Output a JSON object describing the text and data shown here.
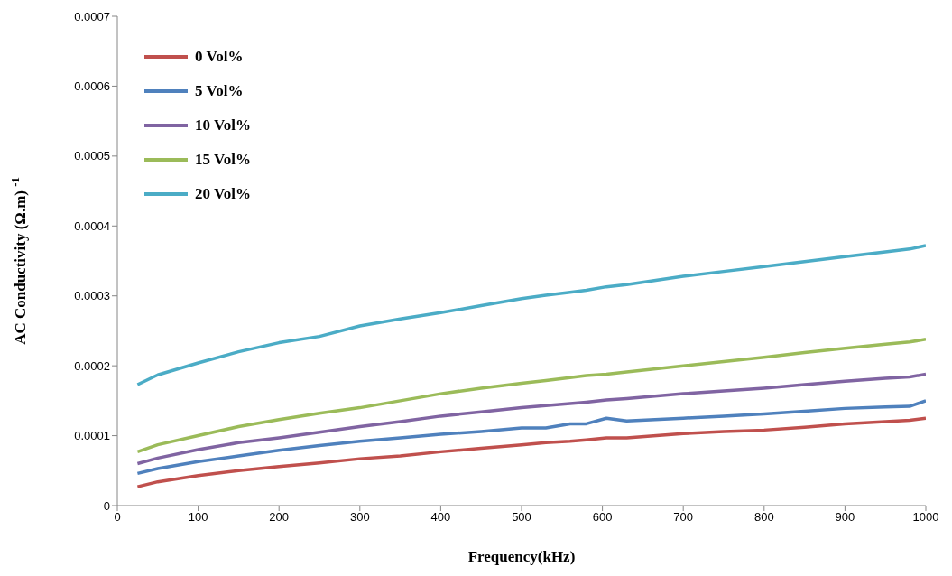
{
  "chart_data": {
    "type": "line",
    "xlabel": "Frequency(kHz)",
    "ylabel": "AC Conductivity (Ω.m) $^{-1}$",
    "x": [
      25,
      50,
      100,
      150,
      200,
      250,
      300,
      350,
      400,
      450,
      500,
      530,
      560,
      580,
      605,
      630,
      700,
      750,
      800,
      850,
      900,
      950,
      980,
      1000
    ],
    "series": [
      {
        "name": "0 Vol%",
        "color": "#c0504d",
        "values": [
          2.7e-05,
          3.4e-05,
          4.3e-05,
          5e-05,
          5.6e-05,
          6.1e-05,
          6.7e-05,
          7.1e-05,
          7.7e-05,
          8.2e-05,
          8.7e-05,
          9e-05,
          9.2e-05,
          9.4e-05,
          9.7e-05,
          9.7e-05,
          0.000103,
          0.000106,
          0.000108,
          0.000112,
          0.000117,
          0.00012,
          0.000122,
          0.000125
        ]
      },
      {
        "name": "5 Vol%",
        "color": "#4f81bd",
        "values": [
          4.6e-05,
          5.3e-05,
          6.3e-05,
          7.1e-05,
          7.9e-05,
          8.6e-05,
          9.2e-05,
          9.7e-05,
          0.000102,
          0.000106,
          0.000111,
          0.000111,
          0.000117,
          0.000117,
          0.000125,
          0.000121,
          0.000125,
          0.000128,
          0.000131,
          0.000135,
          0.000139,
          0.000141,
          0.000142,
          0.00015
        ]
      },
      {
        "name": "10 Vol%",
        "color": "#8064a2",
        "values": [
          6e-05,
          6.8e-05,
          8e-05,
          9e-05,
          9.7e-05,
          0.000105,
          0.000113,
          0.00012,
          0.000128,
          0.000134,
          0.00014,
          0.000143,
          0.000146,
          0.000148,
          0.000151,
          0.000153,
          0.00016,
          0.000164,
          0.000168,
          0.000173,
          0.000178,
          0.000182,
          0.000184,
          0.000188
        ]
      },
      {
        "name": "15 Vol%",
        "color": "#9bbb59",
        "values": [
          7.7e-05,
          8.7e-05,
          0.0001,
          0.000113,
          0.000123,
          0.000132,
          0.00014,
          0.00015,
          0.00016,
          0.000168,
          0.000175,
          0.000179,
          0.000183,
          0.000186,
          0.000188,
          0.000191,
          0.0002,
          0.000206,
          0.000212,
          0.000219,
          0.000225,
          0.000231,
          0.000234,
          0.000238
        ]
      },
      {
        "name": "20 Vol%",
        "color": "#4bacc6",
        "values": [
          0.000173,
          0.000187,
          0.000204,
          0.00022,
          0.000233,
          0.000242,
          0.000257,
          0.000267,
          0.000276,
          0.000286,
          0.000296,
          0.000301,
          0.000305,
          0.000308,
          0.000313,
          0.000316,
          0.000328,
          0.000335,
          0.000342,
          0.000349,
          0.000356,
          0.000363,
          0.000367,
          0.000372
        ]
      }
    ],
    "xlim": [
      0,
      1000
    ],
    "xticks": [
      0,
      100,
      200,
      300,
      400,
      500,
      600,
      700,
      800,
      900,
      1000
    ],
    "ylim": [
      0,
      0.0007
    ],
    "yticks": [
      0,
      0.0001,
      0.0002,
      0.0003,
      0.0004,
      0.0005,
      0.0006,
      0.0007
    ],
    "grid": false,
    "legend": "top left",
    "marker": "none",
    "line_style": "solid"
  }
}
